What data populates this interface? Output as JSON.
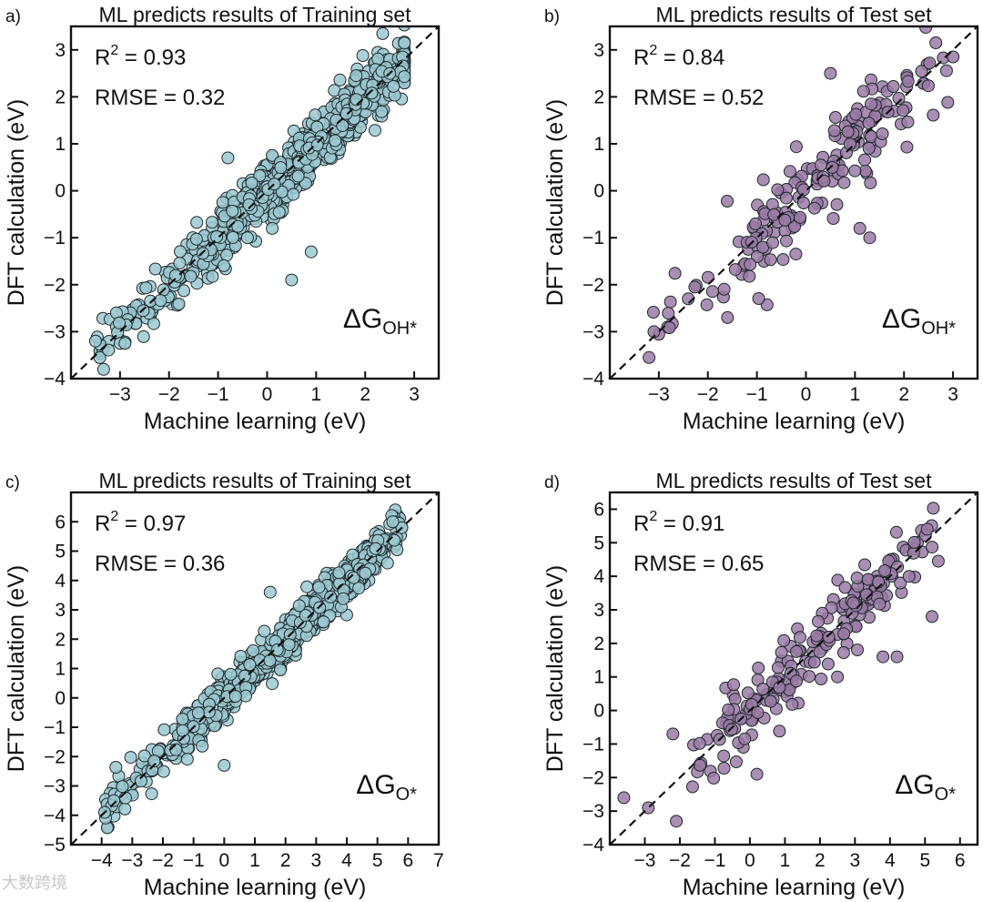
{
  "chart_data": [
    {
      "panel_label": "a)",
      "type": "scatter",
      "title": "ML predicts results of Training set",
      "xlabel": "Machine learning (eV)",
      "ylabel": "DFT calculation (eV)",
      "xlim": [
        -4,
        3.5
      ],
      "ylim": [
        -4,
        3.5
      ],
      "xticks": [
        -3,
        -2,
        -1,
        0,
        1,
        2,
        3
      ],
      "yticks": [
        -4,
        -3,
        -2,
        -1,
        0,
        1,
        2,
        3
      ],
      "r2_label": "R",
      "r2_sup": "2",
      "r2_value": " = 0.93",
      "rmse_text": "RMSE = 0.32",
      "descriptor_main": "ΔG",
      "descriptor_sub": "OH*",
      "marker_color": "#9cc9d1",
      "n_points": 700,
      "spread": 0.32,
      "x_range": [
        -3.5,
        2.8
      ],
      "center": 0.8,
      "width": 2.0,
      "seed": 11,
      "outliers": [
        [
          -3.5,
          -3.2
        ],
        [
          -3.0,
          -3.25
        ],
        [
          -2.9,
          -3.25
        ],
        [
          0.5,
          -1.9
        ],
        [
          0.9,
          -1.3
        ],
        [
          -0.8,
          0.7
        ],
        [
          -0.4,
          -1.0
        ]
      ],
      "grid": false
    },
    {
      "panel_label": "b)",
      "type": "scatter",
      "title": "ML predicts results of Test set",
      "xlabel": "Machine learning (eV)",
      "ylabel": "DFT calculation (eV)",
      "xlim": [
        -4,
        3.5
      ],
      "ylim": [
        -4,
        3.5
      ],
      "xticks": [
        -3,
        -2,
        -1,
        0,
        1,
        2,
        3
      ],
      "yticks": [
        -4,
        -3,
        -2,
        -1,
        0,
        1,
        2,
        3
      ],
      "r2_label": "R",
      "r2_sup": "2",
      "r2_value": " = 0.84",
      "rmse_text": "RMSE = 0.52",
      "descriptor_main": "ΔG",
      "descriptor_sub": "OH*",
      "marker_color": "#9b7aa6",
      "n_points": 180,
      "spread": 0.45,
      "x_range": [
        -3.2,
        3.0
      ],
      "center": 0.4,
      "width": 1.6,
      "seed": 23,
      "outliers": [
        [
          -3.2,
          -3.55
        ],
        [
          -3.1,
          -3.0
        ],
        [
          -2.4,
          -2.3
        ],
        [
          -1.6,
          -2.7
        ],
        [
          3.0,
          2.85
        ],
        [
          0.5,
          2.5
        ],
        [
          1.1,
          -0.8
        ],
        [
          1.3,
          -1.0
        ]
      ],
      "grid": false
    },
    {
      "panel_label": "c)",
      "type": "scatter",
      "title": "ML predicts results of Training set",
      "xlabel": "Machine learning (eV)",
      "ylabel": "DFT calculation (eV)",
      "xlim": [
        -5,
        7
      ],
      "ylim": [
        -5,
        7
      ],
      "xticks": [
        -4,
        -3,
        -2,
        -1,
        0,
        1,
        2,
        3,
        4,
        5,
        6,
        7
      ],
      "yticks": [
        -5,
        -4,
        -3,
        -2,
        -1,
        0,
        1,
        2,
        3,
        4,
        5,
        6
      ],
      "r2_label": "R",
      "r2_sup": "2",
      "r2_value": " = 0.97",
      "rmse_text": "RMSE = 0.36",
      "descriptor_main": "ΔG",
      "descriptor_sub": "O*",
      "marker_color": "#9cc9d1",
      "n_points": 750,
      "spread": 0.36,
      "x_range": [
        -3.9,
        5.8
      ],
      "center": 2.0,
      "width": 3.2,
      "seed": 37,
      "outliers": [
        [
          -3.9,
          -3.9
        ],
        [
          -3.6,
          -3.5
        ],
        [
          0.0,
          -2.3
        ],
        [
          1.5,
          3.6
        ],
        [
          5.8,
          5.8
        ],
        [
          5.5,
          6.0
        ]
      ],
      "grid": false
    },
    {
      "panel_label": "d)",
      "type": "scatter",
      "title": "ML predicts results of Test set",
      "xlabel": "Machine learning (eV)",
      "ylabel": "DFT calculation (eV)",
      "xlim": [
        -4,
        6.5
      ],
      "ylim": [
        -4,
        6.5
      ],
      "xticks": [
        -3,
        -2,
        -1,
        0,
        1,
        2,
        3,
        4,
        5,
        6
      ],
      "yticks": [
        -4,
        -3,
        -2,
        -1,
        0,
        1,
        2,
        3,
        4,
        5,
        6
      ],
      "r2_label": "R",
      "r2_sup": "2",
      "r2_value": " = 0.91",
      "rmse_text": "RMSE = 0.65",
      "descriptor_main": "ΔG",
      "descriptor_sub": "O*",
      "marker_color": "#9b7aa6",
      "n_points": 200,
      "spread": 0.55,
      "x_range": [
        -2.5,
        5.4
      ],
      "center": 2.0,
      "width": 2.6,
      "seed": 53,
      "outliers": [
        [
          -3.6,
          -2.6
        ],
        [
          -2.9,
          -2.9
        ],
        [
          -2.1,
          -3.3
        ],
        [
          -2.2,
          -0.7
        ],
        [
          0.2,
          -1.9
        ],
        [
          3.8,
          1.6
        ],
        [
          4.2,
          1.6
        ],
        [
          5.2,
          2.8
        ],
        [
          2.5,
          1.0
        ]
      ],
      "grid": false
    }
  ],
  "watermark": "大数跨境"
}
